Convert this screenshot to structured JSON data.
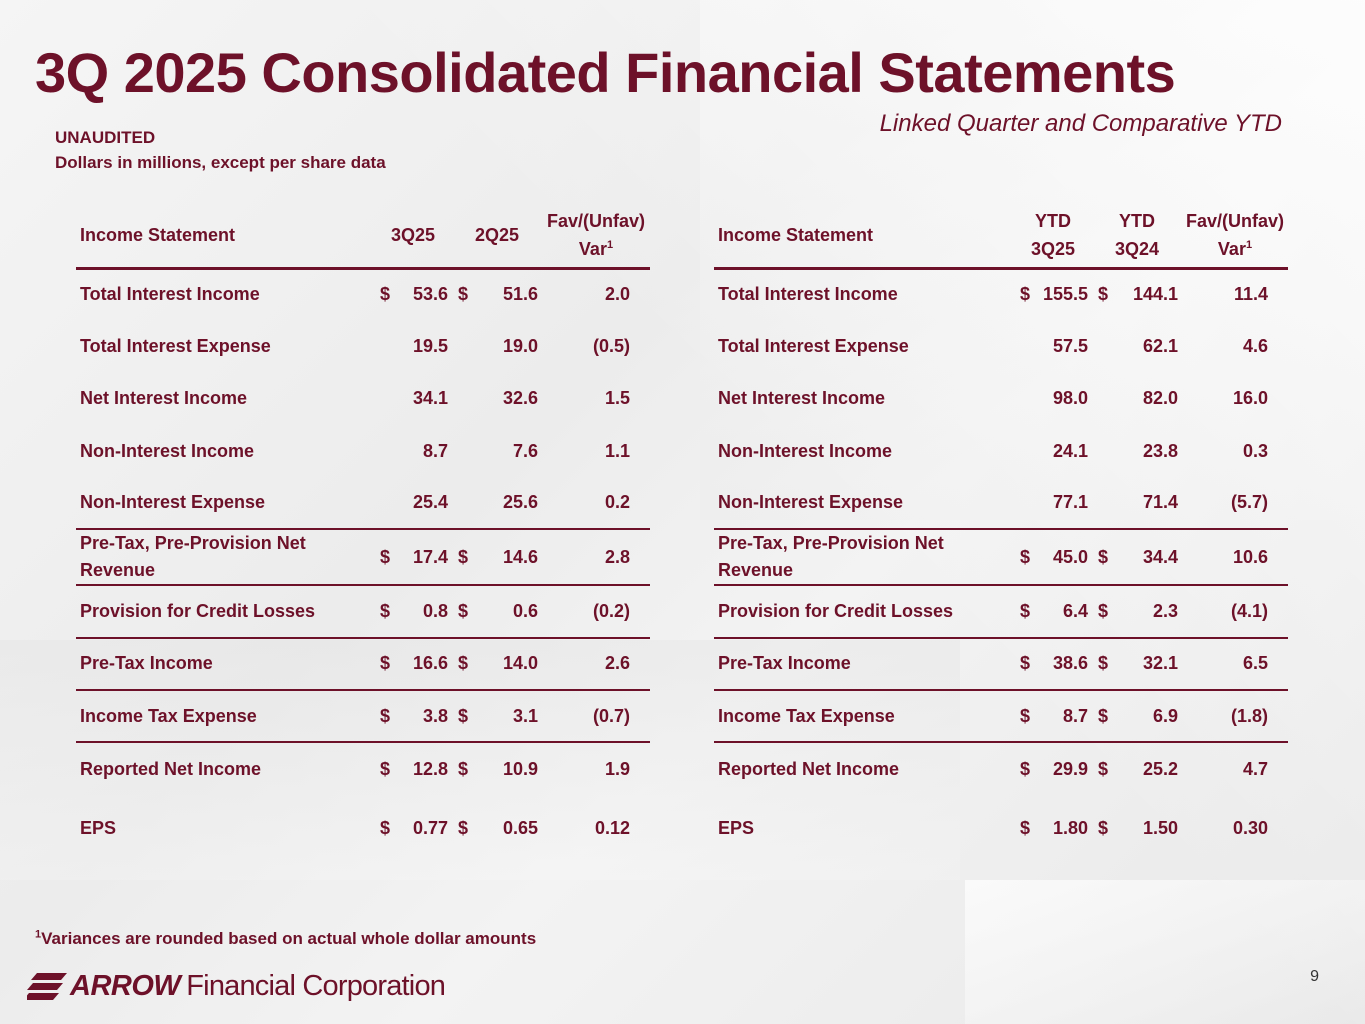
{
  "slide": {
    "title": "3Q 2025 Consolidated Financial Statements",
    "subtitle": "Linked Quarter and Comparative YTD",
    "audit_note": "UNAUDITED",
    "units_note": "Dollars in millions, except per share data",
    "footnote_mark": "1",
    "footnote_text": "Variances are rounded based on actual whole dollar amounts",
    "page_number": "9",
    "logo": {
      "brand": "ARROW",
      "rest": "Financial Corporation"
    },
    "colors": {
      "accent": "#6d1129"
    }
  },
  "left_table": {
    "headers": {
      "label": "Income Statement",
      "col1": "3Q25",
      "col2": "2Q25",
      "var_line1": "Fav/(Unfav)",
      "var_line2": "Var",
      "var_sup": "1"
    },
    "rows": [
      {
        "label": "Total Interest Income",
        "c1_cur": "$",
        "c1": "53.6",
        "c2_cur": "$",
        "c2": "51.6",
        "var": "2.0"
      },
      {
        "label": "Total Interest Expense",
        "c1_cur": "",
        "c1": "19.5",
        "c2_cur": "",
        "c2": "19.0",
        "var": "(0.5)"
      },
      {
        "label": "Net Interest Income",
        "c1_cur": "",
        "c1": "34.1",
        "c2_cur": "",
        "c2": "32.6",
        "var": "1.5"
      },
      {
        "label": "Non-Interest Income",
        "c1_cur": "",
        "c1": "8.7",
        "c2_cur": "",
        "c2": "7.6",
        "var": "1.1"
      },
      {
        "label": "Non-Interest Expense",
        "c1_cur": "",
        "c1": "25.4",
        "c2_cur": "",
        "c2": "25.6",
        "var": "0.2"
      },
      {
        "label_line1": "Pre-Tax, Pre-Provision Net",
        "label_line2": "Revenue",
        "c1_cur": "$",
        "c1": "17.4",
        "c2_cur": "$",
        "c2": "14.6",
        "var": "2.8"
      },
      {
        "label": "Provision for Credit Losses",
        "c1_cur": "$",
        "c1": "0.8",
        "c2_cur": "$",
        "c2": "0.6",
        "var": "(0.2)"
      },
      {
        "label": "Pre-Tax Income",
        "c1_cur": "$",
        "c1": "16.6",
        "c2_cur": "$",
        "c2": "14.0",
        "var": "2.6"
      },
      {
        "label": "Income Tax Expense",
        "c1_cur": "$",
        "c1": "3.8",
        "c2_cur": "$",
        "c2": "3.1",
        "var": "(0.7)"
      },
      {
        "label": "Reported Net Income",
        "c1_cur": "$",
        "c1": "12.8",
        "c2_cur": "$",
        "c2": "10.9",
        "var": "1.9"
      },
      {
        "label": "EPS",
        "c1_cur": "$",
        "c1": "0.77",
        "c2_cur": "$",
        "c2": "0.65",
        "var": "0.12"
      }
    ]
  },
  "right_table": {
    "headers": {
      "label": "Income Statement",
      "col1_line1": "YTD",
      "col1_line2": "3Q25",
      "col2_line1": "YTD",
      "col2_line2": "3Q24",
      "var_line1": "Fav/(Unfav)",
      "var_line2": "Var",
      "var_sup": "1"
    },
    "rows": [
      {
        "label": "Total Interest Income",
        "c1_cur": "$",
        "c1": "155.5",
        "c2_cur": "$",
        "c2": "144.1",
        "var": "11.4"
      },
      {
        "label": "Total Interest Expense",
        "c1_cur": "",
        "c1": "57.5",
        "c2_cur": "",
        "c2": "62.1",
        "var": "4.6"
      },
      {
        "label": "Net Interest Income",
        "c1_cur": "",
        "c1": "98.0",
        "c2_cur": "",
        "c2": "82.0",
        "var": "16.0"
      },
      {
        "label": "Non-Interest Income",
        "c1_cur": "",
        "c1": "24.1",
        "c2_cur": "",
        "c2": "23.8",
        "var": "0.3"
      },
      {
        "label": "Non-Interest Expense",
        "c1_cur": "",
        "c1": "77.1",
        "c2_cur": "",
        "c2": "71.4",
        "var": "(5.7)"
      },
      {
        "label_line1": "Pre-Tax, Pre-Provision Net",
        "label_line2": "Revenue",
        "c1_cur": "$",
        "c1": "45.0",
        "c2_cur": "$",
        "c2": "34.4",
        "var": "10.6"
      },
      {
        "label": "Provision for Credit Losses",
        "c1_cur": "$",
        "c1": "6.4",
        "c2_cur": "$",
        "c2": "2.3",
        "var": "(4.1)"
      },
      {
        "label": "Pre-Tax Income",
        "c1_cur": "$",
        "c1": "38.6",
        "c2_cur": "$",
        "c2": "32.1",
        "var": "6.5"
      },
      {
        "label": "Income Tax Expense",
        "c1_cur": "$",
        "c1": "8.7",
        "c2_cur": "$",
        "c2": "6.9",
        "var": "(1.8)"
      },
      {
        "label": "Reported Net Income",
        "c1_cur": "$",
        "c1": "29.9",
        "c2_cur": "$",
        "c2": "25.2",
        "var": "4.7"
      },
      {
        "label": "EPS",
        "c1_cur": "$",
        "c1": "1.80",
        "c2_cur": "$",
        "c2": "1.50",
        "var": "0.30"
      }
    ]
  }
}
